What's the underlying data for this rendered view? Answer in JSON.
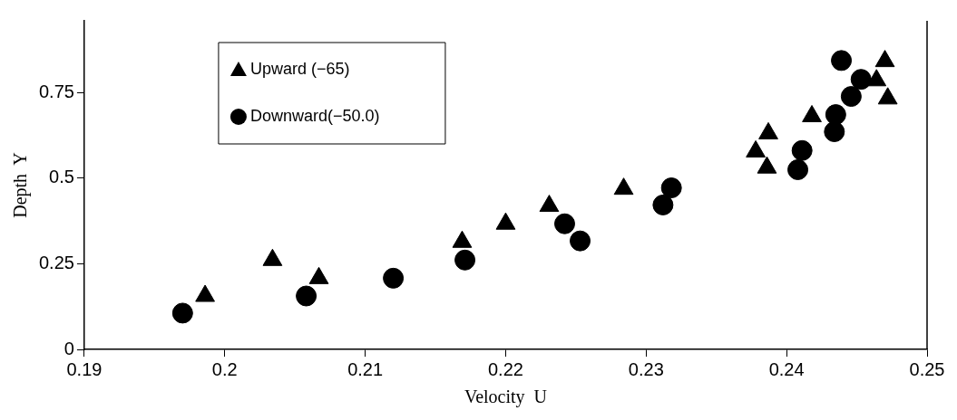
{
  "chart_data": {
    "type": "scatter",
    "xlabel": "Velocity  U",
    "ylabel": "Depth  Y",
    "xlim": [
      0.19,
      0.25
    ],
    "xticks": [
      0.19,
      0.2,
      0.21,
      0.22,
      0.23,
      0.24,
      0.25
    ],
    "ylim": [
      0,
      0.96
    ],
    "yticks": [
      0,
      0.25,
      0.5,
      0.75
    ],
    "grid": false,
    "legend": "top left",
    "series": [
      {
        "name": "Upward (−65)",
        "color": "#000000",
        "marker": "triangle",
        "x": [
          0.1986,
          0.2034,
          0.2067,
          0.2169,
          0.22,
          0.2231,
          0.2284,
          0.2378,
          0.2387,
          0.2386,
          0.2418,
          0.247,
          0.2464,
          0.2472
        ],
        "values": [
          0.156,
          0.261,
          0.208,
          0.314,
          0.367,
          0.419,
          0.469,
          0.578,
          0.631,
          0.531,
          0.681,
          0.842,
          0.786,
          0.733
        ]
      },
      {
        "name": "Downward(−50.0)",
        "color": "#000000",
        "marker": "circle",
        "x": [
          0.197,
          0.2058,
          0.212,
          0.2171,
          0.2242,
          0.2253,
          0.2312,
          0.2318,
          0.2408,
          0.2411,
          0.2434,
          0.2435,
          0.2446,
          0.2453,
          0.2439
        ],
        "values": [
          0.106,
          0.156,
          0.208,
          0.261,
          0.367,
          0.317,
          0.422,
          0.472,
          0.525,
          0.581,
          0.636,
          0.686,
          0.739,
          0.789,
          0.844
        ]
      }
    ]
  }
}
